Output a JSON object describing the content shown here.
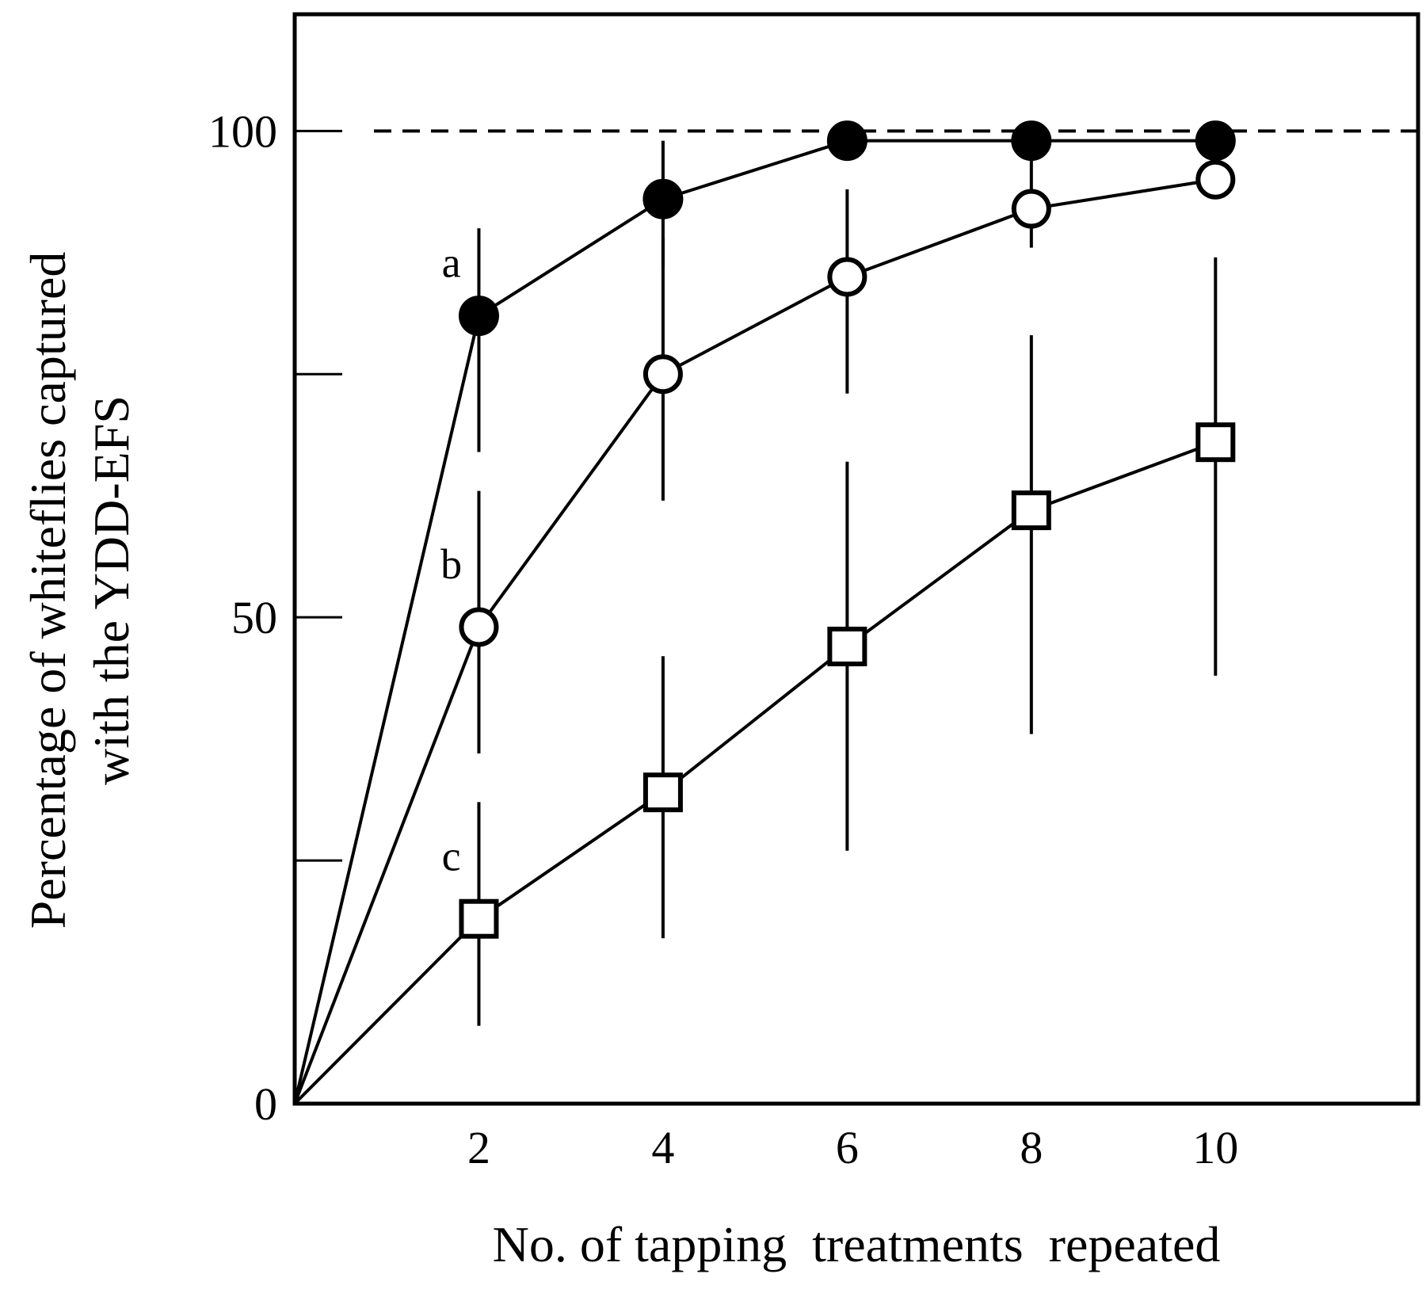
{
  "chart_data": {
    "type": "line",
    "title": "",
    "xlabel": "No. of tapping  treatments  repeated",
    "ylabel_line1": "Percentage of whiteflies captured",
    "ylabel_line2": "with the YDD-EFS",
    "x_ticks": [
      2,
      4,
      6,
      8,
      10
    ],
    "x_tick_labels": [
      "2",
      "4",
      "6",
      "8",
      "10"
    ],
    "y_ticks": [
      0,
      25,
      50,
      75,
      100
    ],
    "y_tick_labels": {
      "0": "0",
      "50": "50",
      "100": "100"
    },
    "xlim": [
      0,
      12.2
    ],
    "ylim": [
      0,
      112
    ],
    "reference_line": {
      "y": 100,
      "style": "dashed"
    },
    "series": [
      {
        "name": "a",
        "marker": "filled-circle",
        "x": [
          0,
          2,
          4,
          6,
          8,
          10
        ],
        "y": [
          0,
          81,
          93,
          99,
          99,
          99
        ],
        "err_low": [
          null,
          67,
          86,
          99,
          99,
          99
        ],
        "err_high": [
          null,
          90,
          99,
          99,
          99,
          99
        ]
      },
      {
        "name": "b",
        "marker": "open-circle",
        "x": [
          0,
          2,
          4,
          6,
          8,
          10
        ],
        "y": [
          0,
          49,
          75,
          85,
          92,
          95
        ],
        "err_low": [
          null,
          36,
          62,
          73,
          88,
          93
        ],
        "err_high": [
          null,
          63,
          89,
          94,
          97,
          97
        ]
      },
      {
        "name": "c",
        "marker": "open-square",
        "x": [
          0,
          2,
          4,
          6,
          8,
          10
        ],
        "y": [
          0,
          19,
          32,
          47,
          61,
          68
        ],
        "err_low": [
          null,
          8,
          17,
          26,
          38,
          44
        ],
        "err_high": [
          null,
          31,
          46,
          66,
          79,
          87
        ]
      }
    ],
    "series_labels": [
      {
        "text": "a",
        "x": 1.7,
        "y": 85
      },
      {
        "text": "b",
        "x": 1.7,
        "y": 54
      },
      {
        "text": "c",
        "x": 1.7,
        "y": 24
      }
    ]
  }
}
